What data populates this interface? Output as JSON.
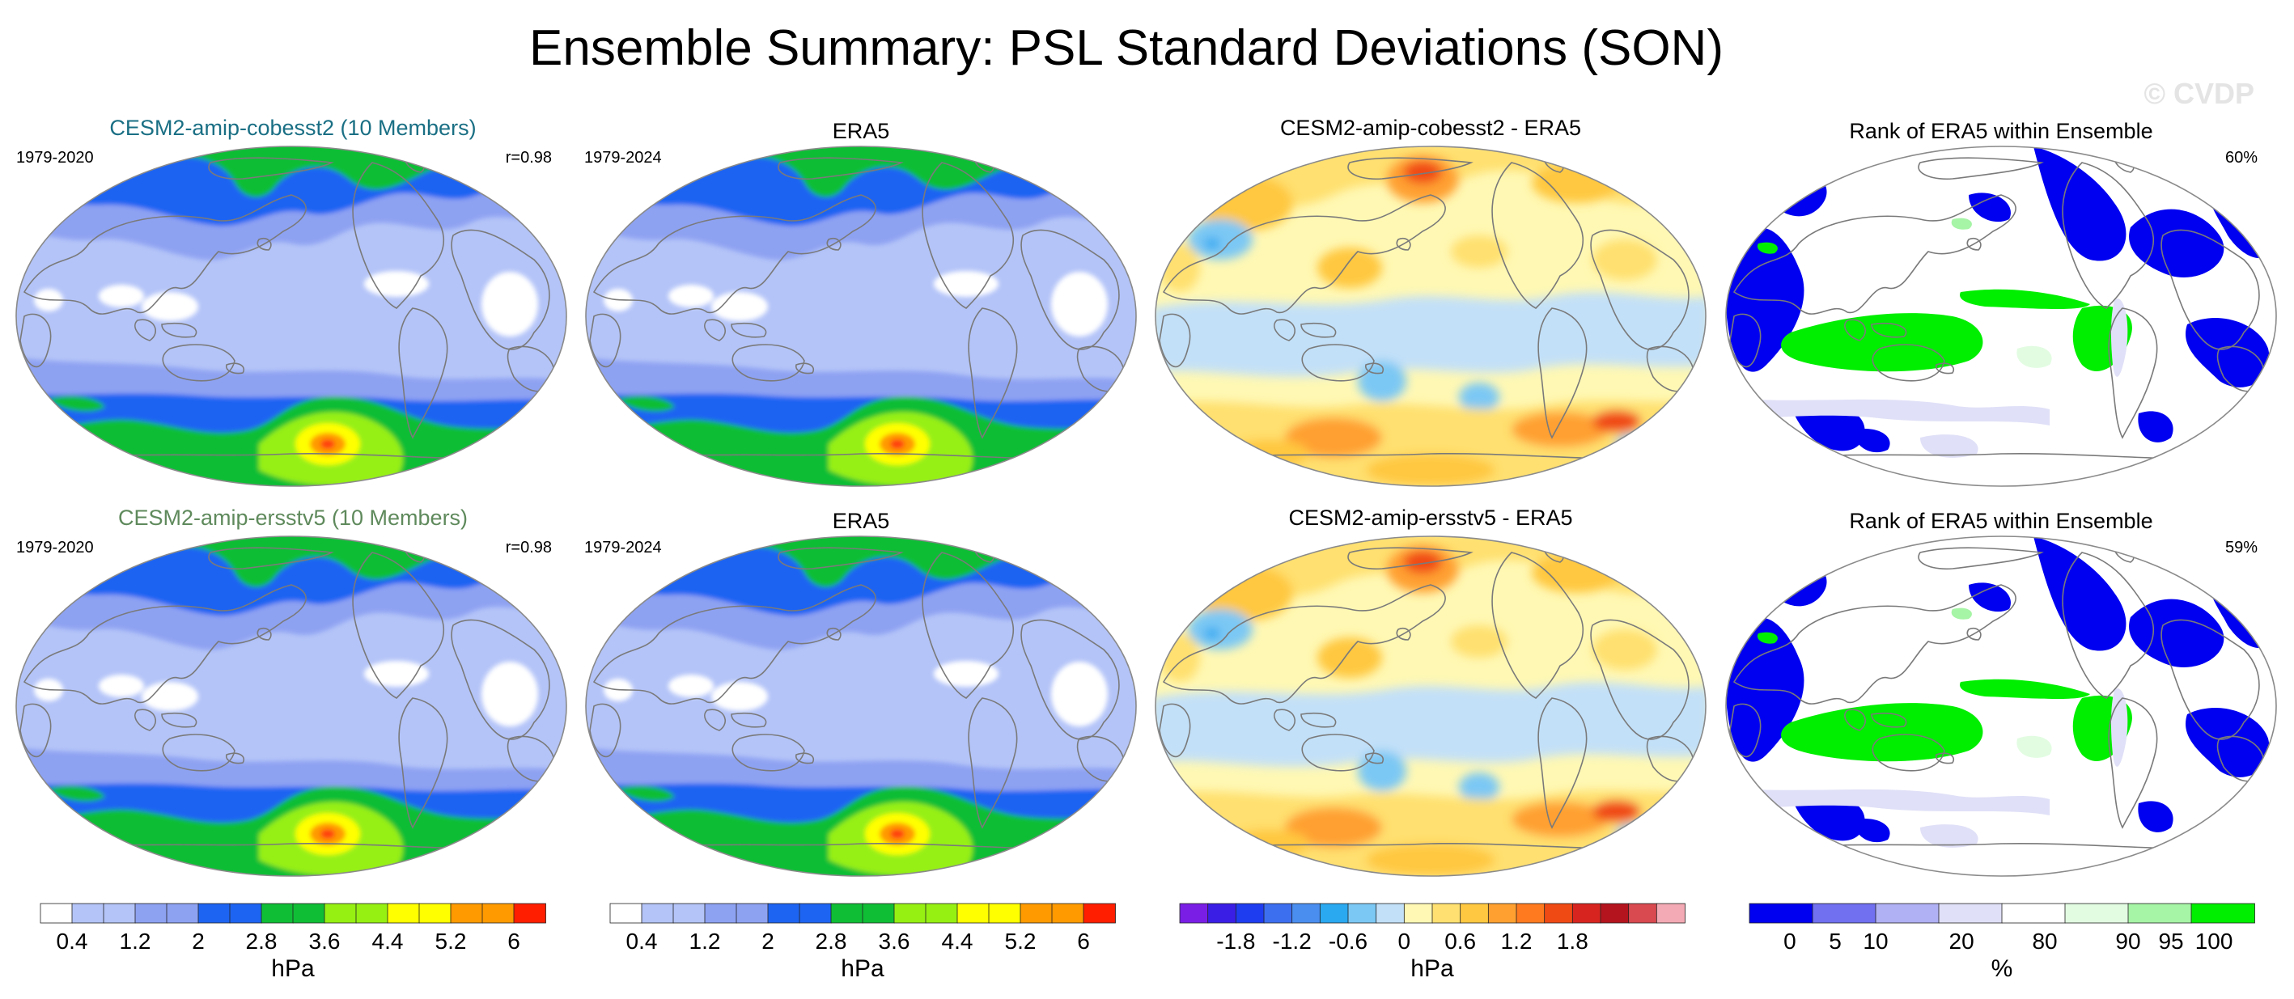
{
  "title": "Ensemble Summary: PSL Standard Deviations (SON)",
  "watermark": "© CVDP",
  "rows": [
    {
      "panels": [
        {
          "title": "CESM2-amip-cobesst2 (10 Members)",
          "title_color": "#1a6f84",
          "left_label": "1979-2020",
          "right_label": "r=0.98",
          "type": "stddev"
        },
        {
          "title": "ERA5",
          "title_color": "#000000",
          "left_label": "1979-2024",
          "right_label": "",
          "type": "stddev"
        },
        {
          "title": "CESM2-amip-cobesst2 - ERA5",
          "title_color": "#000000",
          "left_label": "",
          "right_label": "",
          "type": "diff"
        },
        {
          "title": "Rank of ERA5 within Ensemble",
          "title_color": "#000000",
          "left_label": "",
          "right_label": "60%",
          "type": "rank"
        }
      ]
    },
    {
      "panels": [
        {
          "title": "CESM2-amip-ersstv5 (10 Members)",
          "title_color": "#5f8a5c",
          "left_label": "1979-2020",
          "right_label": "r=0.98",
          "type": "stddev"
        },
        {
          "title": "ERA5",
          "title_color": "#000000",
          "left_label": "1979-2024",
          "right_label": "",
          "type": "stddev"
        },
        {
          "title": "CESM2-amip-ersstv5 - ERA5",
          "title_color": "#000000",
          "left_label": "",
          "right_label": "",
          "type": "diff"
        },
        {
          "title": "Rank of ERA5 within Ensemble",
          "title_color": "#000000",
          "left_label": "",
          "right_label": "59%",
          "type": "rank"
        }
      ]
    }
  ],
  "colorbars": {
    "stddev": {
      "unit": "hPa",
      "boundaries": [
        "0.4",
        "0.8",
        "1.2",
        "1.6",
        "2",
        "2.4",
        "2.8",
        "3.2",
        "3.6",
        "4",
        "4.4",
        "4.8",
        "5.2",
        "5.6",
        "6"
      ],
      "tick_labels": [
        "0.4",
        "1.2",
        "2",
        "2.8",
        "3.6",
        "4.4",
        "5.2",
        "6"
      ],
      "colors": [
        "#ffffff",
        "#b4c4f8",
        "#b4c4f8",
        "#8ea2f2",
        "#8ea2f2",
        "#1e64f2",
        "#1e64f2",
        "#10be36",
        "#10be36",
        "#96f012",
        "#96f012",
        "#ffff00",
        "#ffff00",
        "#ff9a00",
        "#ff9a00",
        "#ff1e00"
      ]
    },
    "diff": {
      "unit": "hPa",
      "boundaries": [
        "-2.1",
        "-1.8",
        "-1.5",
        "-1.2",
        "-0.9",
        "-0.6",
        "-0.3",
        "0",
        "0.3",
        "0.6",
        "0.9",
        "1.2",
        "1.5",
        "1.8",
        "2.1"
      ],
      "tick_labels": [
        "-1.8",
        "-1.2",
        "-0.6",
        "0",
        "0.6",
        "1.2",
        "1.8"
      ],
      "colors": [
        "#7a1ee6",
        "#3a1ee6",
        "#1e3cf0",
        "#3c6ef0",
        "#4a8ef0",
        "#2aa8f0",
        "#7cc8f4",
        "#c2e0f8",
        "#fff8b4",
        "#ffe070",
        "#ffc840",
        "#ffa030",
        "#ff7a1e",
        "#f04a14",
        "#d8241e",
        "#b4141e",
        "#d84a50",
        "#f4aab4"
      ]
    },
    "rank": {
      "unit": "%",
      "boundaries": [
        "0",
        "5",
        "10",
        "20",
        "80",
        "90",
        "95",
        "100"
      ],
      "tick_labels": [
        "0",
        "5",
        "10",
        "20",
        "80",
        "90",
        "95",
        "100"
      ],
      "colors": [
        "#0000f0",
        "#7070f0",
        "#b0b0f4",
        "#e0e0f8",
        "#ffffff",
        "#e2fce2",
        "#a6f4a6",
        "#00ee00"
      ]
    }
  }
}
